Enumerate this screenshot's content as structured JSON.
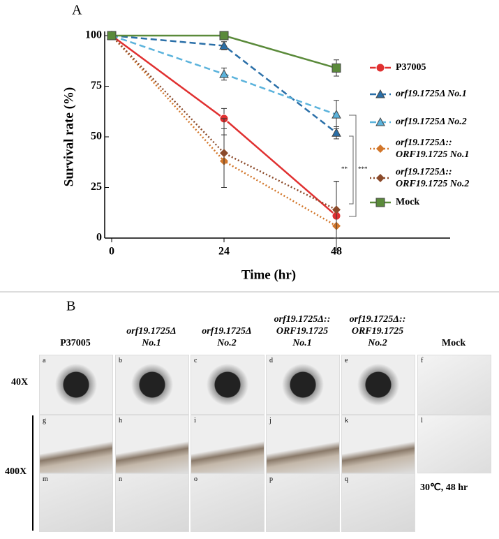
{
  "panel_a_label": "A",
  "chart_data": {
    "type": "line",
    "x_label": "Time (hr)",
    "y_label": "Survival rate (%)",
    "x": [
      0,
      24,
      48
    ],
    "xlim": [
      0,
      72
    ],
    "xticks": [
      0,
      24,
      48
    ],
    "ylim": [
      0,
      100
    ],
    "yticks": [
      0,
      25,
      50,
      75,
      100
    ],
    "series": [
      {
        "name": "P37005",
        "color": "#e03030",
        "dash": "solid",
        "marker": "circle",
        "values": [
          100,
          59,
          11
        ],
        "errors": [
          0,
          5,
          17
        ]
      },
      {
        "name": "orf19.1725Δ No.1",
        "color": "#2a6fa8",
        "dash": "dashed",
        "marker": "triangle",
        "values": [
          100,
          95,
          52
        ],
        "errors": [
          0,
          2,
          3
        ]
      },
      {
        "name": "orf19.1725Δ No.2",
        "color": "#5bb3dc",
        "dash": "dashed",
        "marker": "triangle",
        "values": [
          100,
          81,
          61
        ],
        "errors": [
          0,
          3,
          7
        ]
      },
      {
        "name": "orf19.1725Δ:: ORF19.1725 No.1",
        "color": "#d2762a",
        "dash": "dotted",
        "marker": "diamond",
        "values": [
          100,
          38,
          6
        ],
        "errors": [
          0,
          13,
          0
        ]
      },
      {
        "name": "orf19.1725Δ:: ORF19.1725 No.2",
        "color": "#8b4a2a",
        "dash": "dotted",
        "marker": "diamond",
        "values": [
          100,
          42,
          14
        ],
        "errors": [
          0,
          17,
          14
        ]
      },
      {
        "name": "Mock",
        "color": "#5a8a3a",
        "dash": "solid",
        "marker": "square",
        "values": [
          100,
          100,
          84
        ],
        "errors": [
          0,
          0,
          4
        ]
      }
    ],
    "annotations": [
      "**",
      "***"
    ]
  },
  "panel_b": {
    "label": "B",
    "columns": [
      [
        "P37005"
      ],
      [
        "orf19.1725Δ",
        "No.1"
      ],
      [
        "orf19.1725Δ",
        "No.2"
      ],
      [
        "orf19.1725Δ::",
        "ORF19.1725",
        "No.1"
      ],
      [
        "orf19.1725Δ::",
        "ORF19.1725",
        "No.2"
      ],
      [
        "Mock"
      ]
    ],
    "rows": [
      "40X",
      "400X"
    ],
    "images": [
      [
        "a",
        "b",
        "c",
        "d",
        "e",
        "f"
      ],
      [
        "g",
        "h",
        "i",
        "j",
        "k",
        "l"
      ],
      [
        "m",
        "n",
        "o",
        "p",
        "q"
      ]
    ],
    "condition": "30℃, 48 hr"
  }
}
